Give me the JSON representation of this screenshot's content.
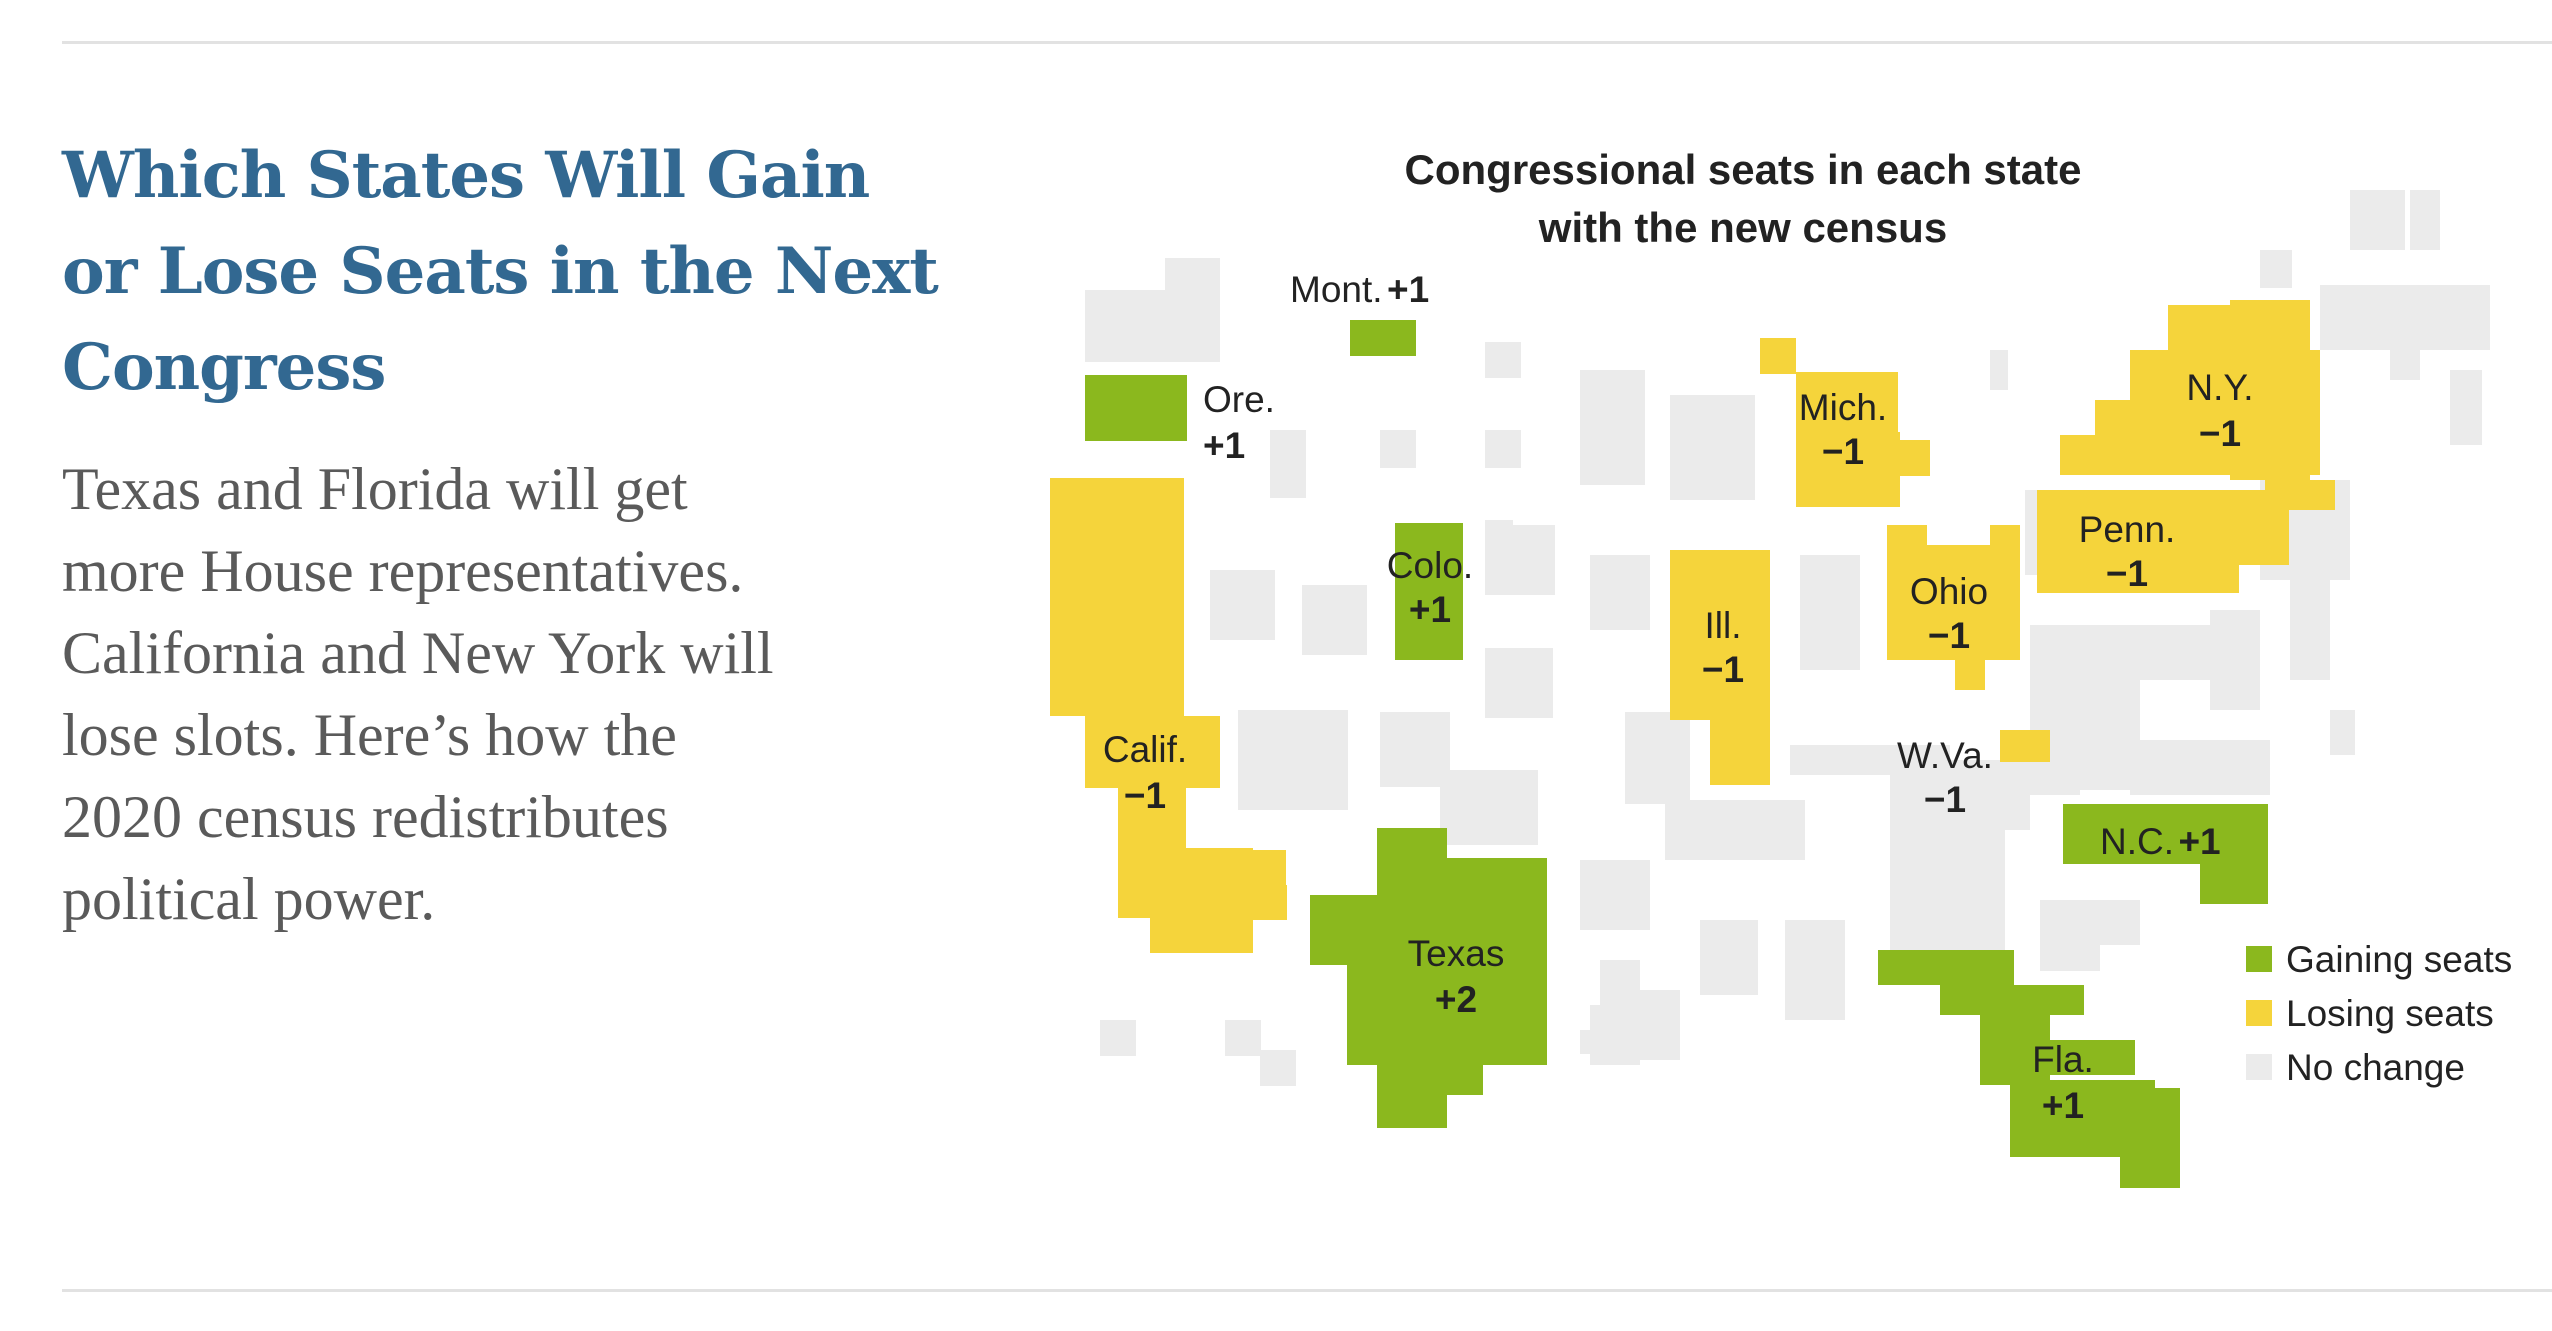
{
  "article": {
    "headline_lines": [
      "Which States Will Gain",
      "or Lose Seats in the Next",
      "Congress"
    ],
    "summary_lines": [
      "Texas and Florida will get",
      "more House representatives.",
      "California and New York will",
      "lose slots. Here’s how the",
      "2020 census redistributes",
      "political power."
    ]
  },
  "map": {
    "title_lines": [
      "Congressional seats in each state",
      "with the new census"
    ],
    "colors": {
      "gaining": "#8bb81e",
      "losing": "#f5d43b",
      "no_change": "#ebebeb"
    },
    "legend": [
      {
        "key": "gaining",
        "label": "Gaining seats"
      },
      {
        "key": "losing",
        "label": "Losing seats"
      },
      {
        "key": "no_change",
        "label": "No change"
      }
    ],
    "states": [
      {
        "abbr": "Mont.",
        "status": "gaining",
        "change": "+1"
      },
      {
        "abbr": "Ore.",
        "status": "gaining",
        "change": "+1"
      },
      {
        "abbr": "Colo.",
        "status": "gaining",
        "change": "+1"
      },
      {
        "abbr": "Calif.",
        "status": "losing",
        "change": "−1"
      },
      {
        "abbr": "Texas",
        "status": "gaining",
        "change": "+2"
      },
      {
        "abbr": "Mich.",
        "status": "losing",
        "change": "−1"
      },
      {
        "abbr": "Ill.",
        "status": "losing",
        "change": "−1"
      },
      {
        "abbr": "Ohio",
        "status": "losing",
        "change": "−1"
      },
      {
        "abbr": "W.Va.",
        "status": "losing",
        "change": "−1"
      },
      {
        "abbr": "N.Y.",
        "status": "losing",
        "change": "−1"
      },
      {
        "abbr": "Penn.",
        "status": "losing",
        "change": "−1"
      },
      {
        "abbr": "N.C.",
        "status": "gaining",
        "change": "+1"
      },
      {
        "abbr": "Fla.",
        "status": "gaining",
        "change": "+1"
      }
    ]
  }
}
